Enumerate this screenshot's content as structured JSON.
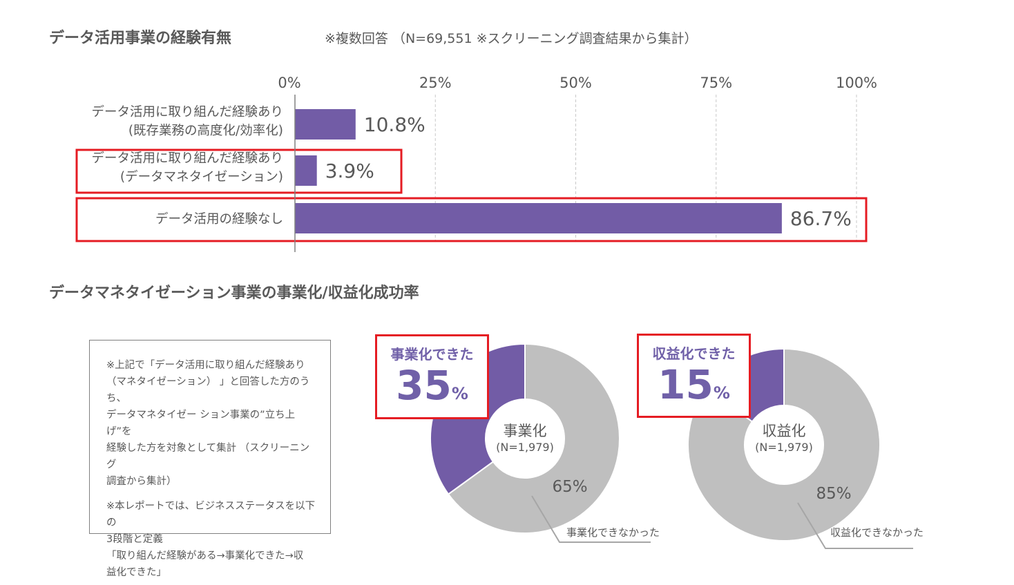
{
  "section1": {
    "title": "データ活用事業の経験有無",
    "note": "※複数回答 （N=69,551 ※スクリーニング調査結果から集計）"
  },
  "section2": {
    "title": "データマネタイゼーション事業の事業化/収益化成功率"
  },
  "chart_data": [
    {
      "type": "bar",
      "orientation": "horizontal",
      "categories": [
        [
          "データ活用に取り組んだ経験あり",
          "(既存業務の高度化/効率化)"
        ],
        [
          "データ活用に取り組んだ経験あり",
          "(データマネタイゼーション)"
        ],
        [
          "データ活用の経験なし"
        ]
      ],
      "values": [
        10.8,
        3.9,
        86.7
      ],
      "value_labels": [
        "10.8%",
        "3.9%",
        "86.7%"
      ],
      "xlim": [
        0,
        100
      ],
      "ticks": [
        "0%",
        "25%",
        "50%",
        "75%",
        "100%"
      ],
      "tick_values": [
        0,
        25,
        50,
        75,
        100
      ],
      "grid": "vertical dashed",
      "bar_color": "#725ca6",
      "highlighted": [
        1,
        2
      ],
      "highlight_color": "#e51c23"
    },
    {
      "type": "pie",
      "donut": true,
      "center_title": "事業化",
      "center_n": "(N=1,979)",
      "values": [
        35,
        65
      ],
      "colors": [
        "#725ca6",
        "#bfbfbf"
      ],
      "callout_label": "事業化できた",
      "callout_value": "35",
      "callout_unit": "%",
      "slice_label": "65%",
      "leader_label": "事業化できなかった"
    },
    {
      "type": "pie",
      "donut": true,
      "center_title": "収益化",
      "center_n": "(N=1,979)",
      "values": [
        15,
        85
      ],
      "colors": [
        "#725ca6",
        "#bfbfbf"
      ],
      "callout_label": "収益化できた",
      "callout_value": "15",
      "callout_unit": "%",
      "slice_label": "85%",
      "leader_label": "収益化できなかった"
    }
  ],
  "note_box": {
    "p1": "※上記で「データ活用に取り組んだ経験あり\n（マネタイゼーション） 」と回答した方のうち、\nデータマネタイゼー ション事業の”立ち上げ”を\n経験した方を対象として集計 （スクリーニング\n調査から集計）",
    "p2": "※本レポートでは、ビジネスステータスを以下の\n3段階と定義\n「取り組んだ経験がある→事業化できた→収\n益化できた」"
  }
}
